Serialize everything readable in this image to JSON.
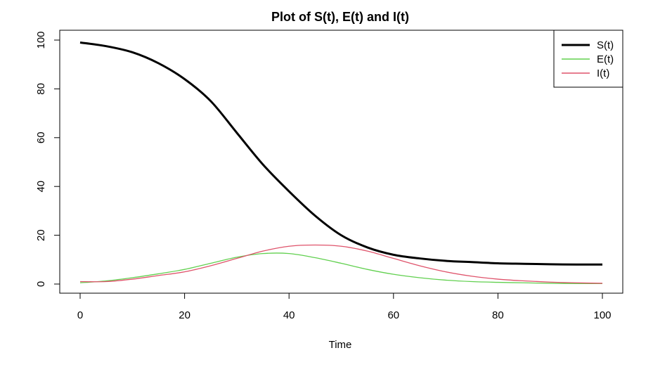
{
  "chart_data": {
    "type": "line",
    "title": "Plot of S(t), E(t) and I(t)",
    "xlabel": "Time",
    "ylabel": "",
    "xlim": [
      0,
      100
    ],
    "ylim": [
      0,
      100
    ],
    "xticks": [
      "0",
      "20",
      "40",
      "60",
      "80",
      "100"
    ],
    "yticks": [
      "0",
      "20",
      "40",
      "60",
      "80",
      "100"
    ],
    "legend_position": "top-right",
    "grid": false,
    "x": [
      0,
      5,
      10,
      15,
      20,
      25,
      30,
      35,
      40,
      45,
      50,
      55,
      60,
      65,
      70,
      75,
      80,
      85,
      90,
      95,
      100
    ],
    "series": [
      {
        "name": "S(t)",
        "color": "#000000",
        "values": [
          99,
          97.5,
          95,
          90.5,
          84,
          75,
          62,
          49,
          38,
          28,
          20,
          15,
          12,
          10.5,
          9.5,
          9,
          8.5,
          8.3,
          8.1,
          8,
          8
        ]
      },
      {
        "name": "E(t)",
        "color": "#61D04F",
        "values": [
          0.5,
          1.3,
          2.6,
          4.2,
          6,
          8.5,
          11,
          12.5,
          12.5,
          10.8,
          8.5,
          6,
          4,
          2.6,
          1.6,
          1,
          0.7,
          0.5,
          0.3,
          0.2,
          0.2
        ]
      },
      {
        "name": "I(t)",
        "color": "#DF536B",
        "values": [
          1,
          1,
          2,
          3.5,
          5,
          7.5,
          10.5,
          13.5,
          15.5,
          16,
          15.5,
          13.5,
          10.5,
          7.5,
          5,
          3.2,
          2,
          1.3,
          0.8,
          0.5,
          0.3
        ]
      }
    ]
  }
}
